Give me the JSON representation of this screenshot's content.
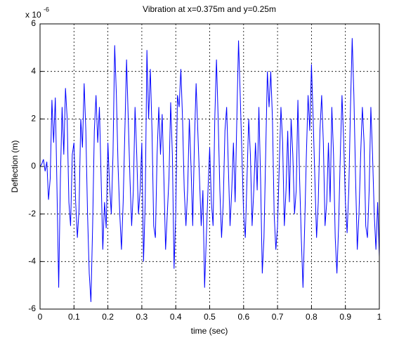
{
  "chart_data": {
    "type": "line",
    "title": "Vibration at x=0.375m and y=0.25m",
    "x_label": "time (sec)",
    "y_label": "Deflection (m)",
    "y_multiplier": {
      "base": "x 10",
      "exponent": "-6"
    },
    "xlim": [
      0,
      1
    ],
    "xticks": [
      0,
      0.1,
      0.2,
      0.3,
      0.4,
      0.5,
      0.6,
      0.7,
      0.8,
      0.9,
      1
    ],
    "ylim": [
      -6,
      6
    ],
    "yticks": [
      -6,
      -4,
      -2,
      0,
      2,
      4,
      6
    ],
    "grid": true,
    "x": [
      0,
      0.005,
      0.01,
      0.015,
      0.02,
      0.025,
      0.03,
      0.035,
      0.04,
      0.045,
      0.05,
      0.055,
      0.06,
      0.065,
      0.07,
      0.075,
      0.08,
      0.085,
      0.09,
      0.095,
      0.1,
      0.105,
      0.11,
      0.115,
      0.12,
      0.125,
      0.13,
      0.135,
      0.14,
      0.145,
      0.15,
      0.155,
      0.16,
      0.165,
      0.17,
      0.175,
      0.18,
      0.185,
      0.19,
      0.195,
      0.2,
      0.205,
      0.21,
      0.215,
      0.22,
      0.225,
      0.23,
      0.235,
      0.24,
      0.245,
      0.25,
      0.255,
      0.26,
      0.265,
      0.27,
      0.275,
      0.28,
      0.285,
      0.29,
      0.295,
      0.3,
      0.305,
      0.31,
      0.315,
      0.32,
      0.325,
      0.33,
      0.335,
      0.34,
      0.345,
      0.35,
      0.355,
      0.36,
      0.365,
      0.37,
      0.375,
      0.38,
      0.385,
      0.39,
      0.395,
      0.4,
      0.405,
      0.41,
      0.415,
      0.42,
      0.425,
      0.43,
      0.435,
      0.44,
      0.445,
      0.45,
      0.455,
      0.46,
      0.465,
      0.47,
      0.475,
      0.48,
      0.485,
      0.49,
      0.495,
      0.5,
      0.505,
      0.51,
      0.515,
      0.52,
      0.525,
      0.53,
      0.535,
      0.54,
      0.545,
      0.55,
      0.555,
      0.56,
      0.565,
      0.57,
      0.575,
      0.58,
      0.585,
      0.59,
      0.595,
      0.6,
      0.605,
      0.61,
      0.615,
      0.62,
      0.625,
      0.63,
      0.635,
      0.64,
      0.645,
      0.65,
      0.655,
      0.66,
      0.665,
      0.67,
      0.675,
      0.68,
      0.685,
      0.69,
      0.695,
      0.7,
      0.705,
      0.71,
      0.715,
      0.72,
      0.725,
      0.73,
      0.735,
      0.74,
      0.745,
      0.75,
      0.755,
      0.76,
      0.765,
      0.77,
      0.775,
      0.78,
      0.785,
      0.79,
      0.795,
      0.8,
      0.805,
      0.81,
      0.815,
      0.82,
      0.825,
      0.83,
      0.835,
      0.84,
      0.845,
      0.85,
      0.855,
      0.86,
      0.865,
      0.87,
      0.875,
      0.88,
      0.885,
      0.89,
      0.895,
      0.9,
      0.905,
      0.91,
      0.915,
      0.92,
      0.925,
      0.93,
      0.935,
      0.94,
      0.945,
      0.95,
      0.955,
      0.96,
      0.965,
      0.97,
      0.975,
      0.98,
      0.985,
      0.99,
      0.995,
      1
    ],
    "series": [
      {
        "color": "#0000ff",
        "values": [
          0,
          0.1,
          0.3,
          -0.2,
          0.2,
          -1.4,
          -0.5,
          2.8,
          1.0,
          2.9,
          -1.0,
          -5.1,
          -0.5,
          2.5,
          0.5,
          3.3,
          2.0,
          -1.5,
          -2.5,
          0.5,
          1.0,
          -1.5,
          -3.0,
          -1.8,
          2.0,
          0.8,
          3.5,
          1.5,
          -2.0,
          -4.5,
          -5.7,
          -2.5,
          1.5,
          3.0,
          1.0,
          2.5,
          -0.5,
          -3.5,
          -1.5,
          -2.6,
          1.0,
          -0.8,
          -2.0,
          0.5,
          5.1,
          3.0,
          0.0,
          -2.0,
          -3.5,
          -1.5,
          1.5,
          4.5,
          2.0,
          -0.5,
          -2.5,
          -1.0,
          2.5,
          0.5,
          -2.0,
          -1.0,
          1.0,
          -4.0,
          -1.5,
          4.9,
          2.0,
          4.1,
          1.5,
          -2.5,
          -3.0,
          0.5,
          2.5,
          0.5,
          2.2,
          -0.5,
          -3.5,
          -2.0,
          -0.5,
          2.7,
          0.5,
          -4.3,
          -2.0,
          3.0,
          2.5,
          4.1,
          2.0,
          -1.0,
          -2.5,
          -1.0,
          2.0,
          0.0,
          -2.5,
          1.0,
          3.5,
          1.5,
          -0.5,
          -2.5,
          -1.0,
          -5.1,
          -3.0,
          -1.0,
          0.8,
          -1.5,
          -2.5,
          2.0,
          4.5,
          2.0,
          -1.0,
          -3.0,
          -1.5,
          1.5,
          2.5,
          0.0,
          -2.5,
          -1.0,
          1.0,
          -1.5,
          2.0,
          5.3,
          3.0,
          0.5,
          -2.0,
          -3.0,
          -0.5,
          2.0,
          0.5,
          -2.5,
          -1.0,
          1.0,
          -1.0,
          2.5,
          -0.5,
          -4.5,
          -3.0,
          0.5,
          4.0,
          2.5,
          4.0,
          2.0,
          -2.0,
          -3.5,
          -2.5,
          0.0,
          2.5,
          1.0,
          -2.5,
          -1.0,
          1.5,
          -1.5,
          2.0,
          0.5,
          -2.0,
          -1.0,
          2.8,
          -0.5,
          -3.0,
          -5.1,
          -2.5,
          0.5,
          3.0,
          1.5,
          4.3,
          2.0,
          -0.5,
          -3.0,
          -1.5,
          1.5,
          3.0,
          1.0,
          -2.5,
          -1.5,
          1.0,
          -1.5,
          2.5,
          0.5,
          -3.0,
          -4.5,
          -2.5,
          0.5,
          3.0,
          1.0,
          -1.5,
          -2.8,
          -1.0,
          2.5,
          5.4,
          3.0,
          -0.5,
          -3.5,
          -2.0,
          0.5,
          2.5,
          1.0,
          -2.5,
          -3.0,
          -1.0,
          2.5,
          0.5,
          -2.0,
          -3.5,
          -1.5,
          -3.8
        ]
      }
    ]
  }
}
